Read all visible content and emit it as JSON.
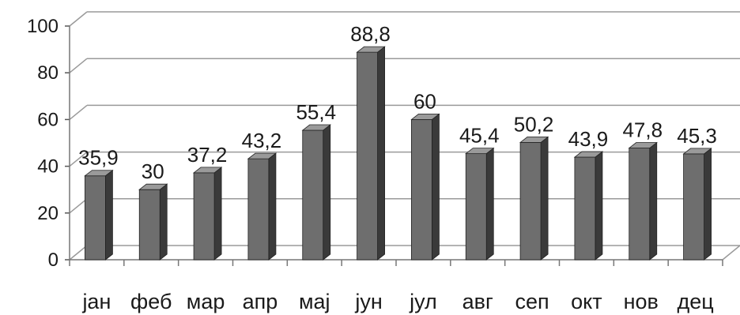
{
  "chart_data": {
    "type": "bar",
    "title": "",
    "xlabel": "",
    "ylabel": "",
    "categories": [
      "јан",
      "феб",
      "мар",
      "апр",
      "мај",
      "јун",
      "јул",
      "авг",
      "сеп",
      "окт",
      "нов",
      "дец"
    ],
    "values": [
      35.9,
      30,
      37.2,
      43.2,
      55.4,
      88.8,
      60,
      45.4,
      50.2,
      43.9,
      47.8,
      45.3
    ],
    "value_labels": [
      "35,9",
      "30",
      "37,2",
      "43,2",
      "55,4",
      "88,8",
      "60",
      "45,4",
      "50,2",
      "43,9",
      "47,8",
      "45,3"
    ],
    "y_ticks": [
      "0",
      "20",
      "40",
      "60",
      "80",
      "100"
    ],
    "ylim": [
      0,
      100
    ],
    "grid": true,
    "legend": "none",
    "bar_color": "#6e6e6e",
    "bar_side_color": "#3a3a3a",
    "bar_top_color": "#9a9a9a"
  }
}
